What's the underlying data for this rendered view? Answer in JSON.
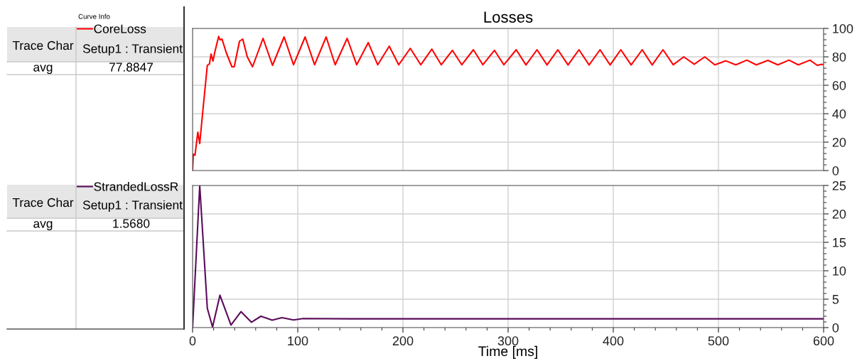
{
  "chart_data": [
    {
      "type": "line",
      "title": "Losses",
      "annotations": [
        "Curve Info",
        "Trace Char",
        "Setup1 : Transient",
        "avg",
        "77.8847"
      ],
      "series": [
        {
          "name": "CoreLoss",
          "color": "#ff0000",
          "x": [
            0,
            0.7,
            2.3,
            5,
            6.8,
            9.5,
            14,
            16,
            17.6,
            19.4,
            21,
            24.8,
            26,
            28,
            32,
            34.7,
            37.4,
            39.6,
            44.6,
            47.7,
            52,
            57,
            67,
            76,
            87,
            96,
            107,
            116,
            127,
            135.6,
            147,
            156,
            167,
            176,
            187,
            196,
            207,
            217,
            227.5,
            236.5,
            247,
            256,
            267,
            276,
            287,
            296,
            307.7,
            317,
            327.5,
            337,
            347.3,
            357,
            367.4,
            377,
            387.4,
            397,
            407.2,
            417,
            427.5,
            437,
            447.3,
            457,
            467,
            477,
            487,
            496.5,
            507,
            516.5,
            527,
            536,
            547,
            556.5,
            567,
            576,
            587,
            594,
            598,
            600
          ],
          "values": [
            0,
            11.5,
            10.8,
            27,
            19,
            40,
            74,
            75,
            82,
            77,
            83,
            94.4,
            92,
            92.5,
            83,
            78,
            73,
            73,
            91,
            92.5,
            80,
            73,
            93,
            74,
            94,
            74.4,
            94,
            74.4,
            94,
            74.4,
            93,
            74.4,
            90,
            74.4,
            87.5,
            74.4,
            86,
            74.4,
            85.4,
            74.4,
            84.6,
            74.4,
            85,
            74.4,
            84.6,
            74.4,
            85,
            74.3,
            85,
            74.3,
            85,
            74.3,
            85,
            74.3,
            85,
            74.3,
            85,
            74.3,
            85,
            74.3,
            85,
            74.4,
            80,
            74.8,
            80,
            74.4,
            77.2,
            74.4,
            77.7,
            74.4,
            77.5,
            74.4,
            77.7,
            74.4,
            77.7,
            74,
            74.8,
            74.5
          ]
        }
      ],
      "xlim": [
        0,
        600
      ],
      "xticks": [
        0,
        100,
        200,
        300,
        400,
        500,
        600
      ],
      "ylim": [
        0,
        100
      ],
      "yticks": [
        0,
        20,
        40,
        60,
        80,
        100
      ],
      "grid": true,
      "legend": "left",
      "tick_labels": "y"
    },
    {
      "type": "line",
      "xlabel": "Time [ms]",
      "annotations": [
        "Trace Char",
        "Setup1 : Transient",
        "avg",
        "1.5680"
      ],
      "series": [
        {
          "name": "StrandedLossR",
          "color": "#5a0a5a",
          "x": [
            0,
            6.8,
            14,
            19,
            26,
            36.5,
            46,
            56,
            65,
            75.7,
            85,
            96,
            105,
            150,
            200,
            250,
            300,
            350,
            400,
            450,
            500,
            550,
            600
          ],
          "values": [
            0,
            25,
            3.4,
            0.1,
            5.7,
            0.45,
            2.8,
            0.95,
            2.0,
            1.3,
            1.75,
            1.35,
            1.6,
            1.55,
            1.55,
            1.55,
            1.55,
            1.55,
            1.55,
            1.55,
            1.55,
            1.55,
            1.55
          ]
        }
      ],
      "xlim": [
        0,
        600
      ],
      "xticks": [
        0,
        100,
        200,
        300,
        400,
        500,
        600
      ],
      "ylim": [
        0,
        25
      ],
      "yticks": [
        0,
        5,
        10,
        15,
        20,
        25
      ],
      "grid": true,
      "legend": "left"
    }
  ]
}
